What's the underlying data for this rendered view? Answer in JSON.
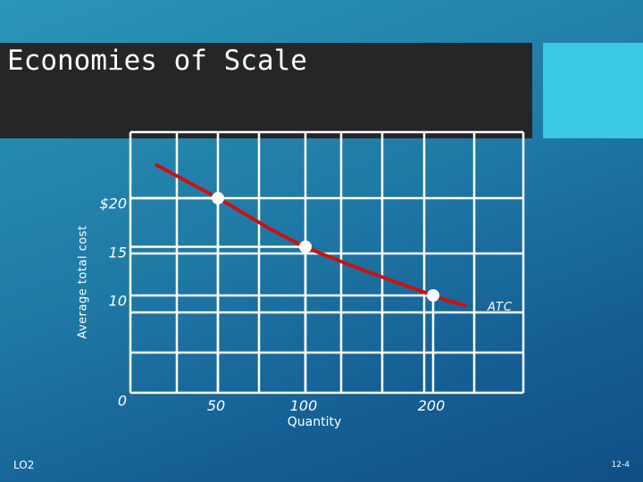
{
  "slide": {
    "title": "Economies of Scale",
    "footer_left": "LO2",
    "footer_right": "12-4"
  },
  "colors": {
    "curve": "#cc1111",
    "grid": "#ffffff",
    "title_bar": "#262626",
    "accent": "#3ac8e4"
  },
  "chart_data": {
    "type": "line",
    "title": "",
    "xlabel": "Quantity",
    "ylabel": "Average total cost",
    "y_ticks": [
      {
        "label": "$20",
        "value": 20
      },
      {
        "label": "15",
        "value": 15
      },
      {
        "label": "10",
        "value": 10
      },
      {
        "label": "0",
        "value": 0
      }
    ],
    "x_ticks": [
      {
        "label": "50",
        "value": 50
      },
      {
        "label": "100",
        "value": 100
      },
      {
        "label": "200",
        "value": 200
      }
    ],
    "series": [
      {
        "name": "ATC",
        "points": [
          {
            "x": 15,
            "y": 23.4
          },
          {
            "x": 50,
            "y": 20
          },
          {
            "x": 100,
            "y": 15
          },
          {
            "x": 200,
            "y": 10
          },
          {
            "x": 225,
            "y": 9
          }
        ]
      }
    ],
    "markers": [
      {
        "x": 50,
        "y": 20
      },
      {
        "x": 100,
        "y": 15
      },
      {
        "x": 200,
        "y": 10
      }
    ],
    "grid": true
  }
}
